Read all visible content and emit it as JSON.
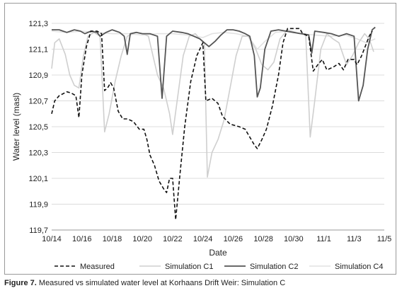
{
  "caption": {
    "label": "Figure 7.",
    "text": " Measured vs simulated water level at Korhaans Drift Weir: Simulation C"
  },
  "chart_data": {
    "type": "line",
    "xlabel": "Date",
    "ylabel": "Water level (masl)",
    "ylim": [
      119.7,
      121.3
    ],
    "yticks": [
      "121,3",
      "121,1",
      "120,9",
      "120,7",
      "120,5",
      "120,3",
      "120,1",
      "119,9",
      "119,7"
    ],
    "xticks": [
      "10/14",
      "10/16",
      "10/18",
      "10/20",
      "10/22",
      "10/24",
      "10/26",
      "10/28",
      "10/30",
      "11/1",
      "11/3",
      "11/5"
    ],
    "grid": "horizontal",
    "legend_position": "bottom",
    "colors": {
      "Measured": "#111111",
      "Simulation C1": "#cfcfcf",
      "Simulation C2": "#555555",
      "Simulation C4": "#e2e2e2"
    },
    "series": [
      {
        "name": "Measured",
        "style": "dashed",
        "points": [
          [
            0,
            120.6
          ],
          [
            0.2,
            120.7
          ],
          [
            0.5,
            120.74
          ],
          [
            1.0,
            120.77
          ],
          [
            1.3,
            120.76
          ],
          [
            1.6,
            120.74
          ],
          [
            1.8,
            120.57
          ],
          [
            2.0,
            120.9
          ],
          [
            2.3,
            121.12
          ],
          [
            2.6,
            121.24
          ],
          [
            3.0,
            121.24
          ],
          [
            3.3,
            121.22
          ],
          [
            3.5,
            120.78
          ],
          [
            3.7,
            120.8
          ],
          [
            3.9,
            120.84
          ],
          [
            4.1,
            120.8
          ],
          [
            4.4,
            120.62
          ],
          [
            4.7,
            120.56
          ],
          [
            5.0,
            120.56
          ],
          [
            5.4,
            120.54
          ],
          [
            5.8,
            120.48
          ],
          [
            6.1,
            120.48
          ],
          [
            6.3,
            120.4
          ],
          [
            6.5,
            120.28
          ],
          [
            6.8,
            120.2
          ],
          [
            7.1,
            120.08
          ],
          [
            7.4,
            120.02
          ],
          [
            7.6,
            119.99
          ],
          [
            7.8,
            120.1
          ],
          [
            8.0,
            120.1
          ],
          [
            8.2,
            119.78
          ],
          [
            8.5,
            120.15
          ],
          [
            8.8,
            120.5
          ],
          [
            9.2,
            120.85
          ],
          [
            9.6,
            121.05
          ],
          [
            10.0,
            121.15
          ],
          [
            10.2,
            120.7
          ],
          [
            10.6,
            120.72
          ],
          [
            11.0,
            120.68
          ],
          [
            11.3,
            120.58
          ],
          [
            11.8,
            120.52
          ],
          [
            12.4,
            120.5
          ],
          [
            12.8,
            120.48
          ],
          [
            13.0,
            120.44
          ],
          [
            13.4,
            120.36
          ],
          [
            13.6,
            120.33
          ],
          [
            13.9,
            120.4
          ],
          [
            14.2,
            120.48
          ],
          [
            14.6,
            120.66
          ],
          [
            15.0,
            120.9
          ],
          [
            15.3,
            121.15
          ],
          [
            15.6,
            121.26
          ],
          [
            16.0,
            121.26
          ],
          [
            16.4,
            121.26
          ],
          [
            16.6,
            121.22
          ],
          [
            17.0,
            121.2
          ],
          [
            17.3,
            120.93
          ],
          [
            17.6,
            120.98
          ],
          [
            17.9,
            121.02
          ],
          [
            18.2,
            120.94
          ],
          [
            18.6,
            120.96
          ],
          [
            19.0,
            120.99
          ],
          [
            19.3,
            120.94
          ],
          [
            19.6,
            121.02
          ],
          [
            20.0,
            121.02
          ],
          [
            20.2,
            120.98
          ],
          [
            20.5,
            121.05
          ],
          [
            20.8,
            121.14
          ],
          [
            21.0,
            121.2
          ],
          [
            21.2,
            121.24
          ]
        ]
      },
      {
        "name": "Simulation C1",
        "style": "solid",
        "points": [
          [
            0,
            120.95
          ],
          [
            0.2,
            121.15
          ],
          [
            0.5,
            121.18
          ],
          [
            0.9,
            121.06
          ],
          [
            1.2,
            120.9
          ],
          [
            1.5,
            120.82
          ],
          [
            1.8,
            120.8
          ],
          [
            2.1,
            121.05
          ],
          [
            2.4,
            121.2
          ],
          [
            2.8,
            121.23
          ],
          [
            3.2,
            121.2
          ],
          [
            3.5,
            120.46
          ],
          [
            3.8,
            120.6
          ],
          [
            4.2,
            120.85
          ],
          [
            4.6,
            121.05
          ],
          [
            5.0,
            121.2
          ],
          [
            5.6,
            121.23
          ],
          [
            6.0,
            121.22
          ],
          [
            6.4,
            121.2
          ],
          [
            7.0,
            120.9
          ],
          [
            7.4,
            120.8
          ],
          [
            7.8,
            120.6
          ],
          [
            8.0,
            120.44
          ],
          [
            8.3,
            120.7
          ],
          [
            8.7,
            121.05
          ],
          [
            9.1,
            121.2
          ],
          [
            9.5,
            121.22
          ],
          [
            9.8,
            121.18
          ],
          [
            10.1,
            121.14
          ],
          [
            10.3,
            120.11
          ],
          [
            10.6,
            120.3
          ],
          [
            11.0,
            120.4
          ],
          [
            11.4,
            120.55
          ],
          [
            11.8,
            120.8
          ],
          [
            12.2,
            121.05
          ],
          [
            12.6,
            121.2
          ],
          [
            13.0,
            121.2
          ],
          [
            13.5,
            121.1
          ],
          [
            13.9,
            120.98
          ],
          [
            14.3,
            120.94
          ],
          [
            14.7,
            121.0
          ],
          [
            15.1,
            121.18
          ],
          [
            15.6,
            121.25
          ],
          [
            16.4,
            121.22
          ],
          [
            16.8,
            121.22
          ],
          [
            17.1,
            120.42
          ],
          [
            17.4,
            120.7
          ],
          [
            17.8,
            121.1
          ],
          [
            18.2,
            121.22
          ],
          [
            18.6,
            121.18
          ],
          [
            19.0,
            121.15
          ],
          [
            19.5,
            120.98
          ],
          [
            19.9,
            121.05
          ],
          [
            20.3,
            121.15
          ],
          [
            20.7,
            121.22
          ],
          [
            21.0,
            121.18
          ],
          [
            21.3,
            121.08
          ]
        ]
      },
      {
        "name": "Simulation C2",
        "style": "solid",
        "points": [
          [
            0,
            121.25
          ],
          [
            0.5,
            121.25
          ],
          [
            1.0,
            121.23
          ],
          [
            1.5,
            121.25
          ],
          [
            1.9,
            121.24
          ],
          [
            2.2,
            121.22
          ],
          [
            2.6,
            121.24
          ],
          [
            3.0,
            121.23
          ],
          [
            3.2,
            121.2
          ],
          [
            3.6,
            121.23
          ],
          [
            4.0,
            121.25
          ],
          [
            4.5,
            121.23
          ],
          [
            4.8,
            121.2
          ],
          [
            5.0,
            121.06
          ],
          [
            5.2,
            121.22
          ],
          [
            5.6,
            121.23
          ],
          [
            6.0,
            121.22
          ],
          [
            6.5,
            121.22
          ],
          [
            7.0,
            121.2
          ],
          [
            7.3,
            120.72
          ],
          [
            7.6,
            121.2
          ],
          [
            8.0,
            121.24
          ],
          [
            8.6,
            121.23
          ],
          [
            9.0,
            121.22
          ],
          [
            9.4,
            121.2
          ],
          [
            9.8,
            121.18
          ],
          [
            10.1,
            121.15
          ],
          [
            10.4,
            121.12
          ],
          [
            10.8,
            121.16
          ],
          [
            11.2,
            121.21
          ],
          [
            11.6,
            121.25
          ],
          [
            12.0,
            121.25
          ],
          [
            12.4,
            121.24
          ],
          [
            12.8,
            121.22
          ],
          [
            13.1,
            121.2
          ],
          [
            13.4,
            121.05
          ],
          [
            13.6,
            120.73
          ],
          [
            13.8,
            120.8
          ],
          [
            14.1,
            121.1
          ],
          [
            14.5,
            121.24
          ],
          [
            15.0,
            121.25
          ],
          [
            15.5,
            121.24
          ],
          [
            16.0,
            121.23
          ],
          [
            16.5,
            121.22
          ],
          [
            17.0,
            121.21
          ],
          [
            17.2,
            121.07
          ],
          [
            17.4,
            121.24
          ],
          [
            18.0,
            121.23
          ],
          [
            18.5,
            121.22
          ],
          [
            19.0,
            121.2
          ],
          [
            19.5,
            121.22
          ],
          [
            20.0,
            121.2
          ],
          [
            20.3,
            120.7
          ],
          [
            20.6,
            120.82
          ],
          [
            20.9,
            121.1
          ],
          [
            21.2,
            121.25
          ],
          [
            21.4,
            121.27
          ]
        ]
      },
      {
        "name": "Simulation C4",
        "style": "solid",
        "points": [
          [
            0,
            121.24
          ],
          [
            1.0,
            121.23
          ],
          [
            2.0,
            121.24
          ],
          [
            3.0,
            121.23
          ],
          [
            4.0,
            121.22
          ],
          [
            5.0,
            121.22
          ],
          [
            6.0,
            121.21
          ],
          [
            7.0,
            121.22
          ],
          [
            8.0,
            121.22
          ],
          [
            9.0,
            121.21
          ],
          [
            10.0,
            121.19
          ],
          [
            10.6,
            121.22
          ],
          [
            11.4,
            121.23
          ],
          [
            12.2,
            121.22
          ],
          [
            13.0,
            121.2
          ],
          [
            13.6,
            121.1
          ],
          [
            14.1,
            121.16
          ],
          [
            14.8,
            121.23
          ],
          [
            15.6,
            121.24
          ],
          [
            16.4,
            121.22
          ],
          [
            17.4,
            121.21
          ],
          [
            18.4,
            121.2
          ],
          [
            19.4,
            121.21
          ],
          [
            20.2,
            121.18
          ],
          [
            20.8,
            121.15
          ],
          [
            21.4,
            121.18
          ]
        ]
      }
    ]
  }
}
